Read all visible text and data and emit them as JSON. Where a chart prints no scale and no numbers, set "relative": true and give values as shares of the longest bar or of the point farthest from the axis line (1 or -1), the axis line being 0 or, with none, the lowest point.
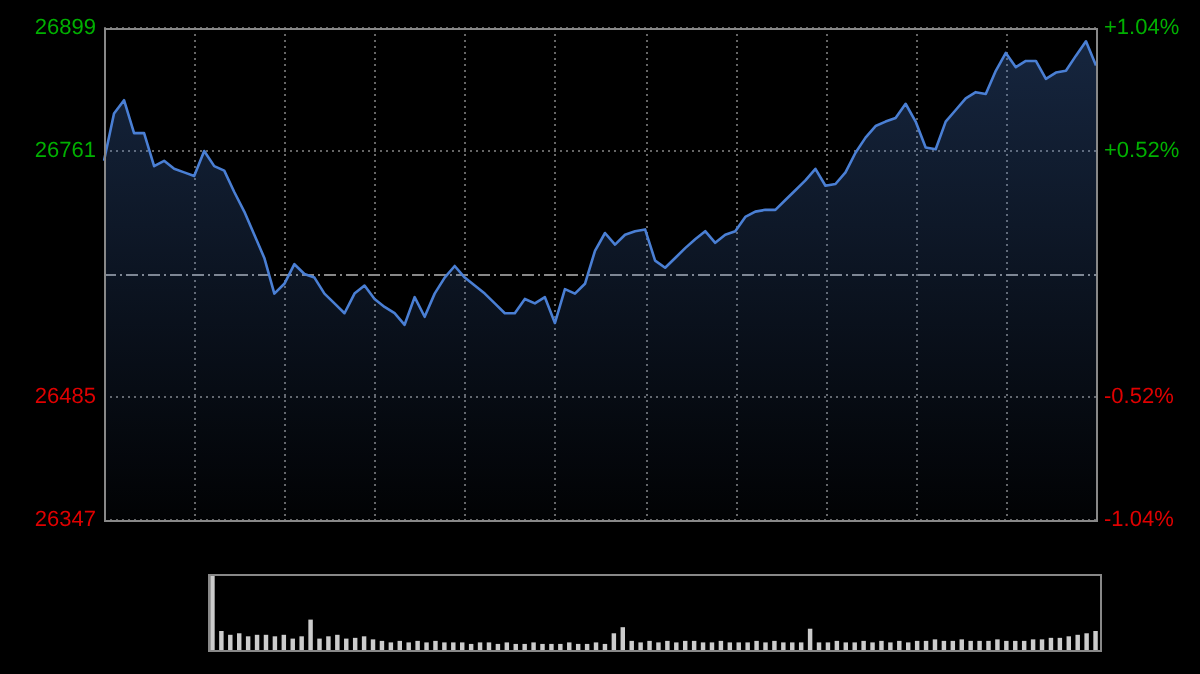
{
  "chart_data": [
    {
      "type": "area",
      "categories": [
        null,
        null,
        null,
        null,
        null,
        null,
        null,
        null,
        null,
        null,
        null,
        null,
        null,
        null,
        null,
        null,
        null,
        null,
        null,
        null,
        null,
        null,
        null,
        null,
        null,
        null,
        null,
        null,
        null,
        null,
        null,
        null,
        null,
        null,
        null,
        null,
        null,
        null,
        null,
        null,
        null,
        null,
        null,
        null,
        null,
        null,
        null,
        null,
        null,
        null,
        null,
        null,
        null,
        null,
        null,
        null,
        null,
        null,
        null,
        null,
        null,
        null,
        null,
        null,
        null,
        null,
        null,
        null,
        null,
        null,
        null,
        null,
        null,
        null,
        null,
        null,
        null,
        null,
        null,
        null,
        null,
        null,
        null,
        null,
        null,
        null,
        null,
        null,
        null,
        null,
        null,
        null,
        null,
        null,
        null,
        null,
        null,
        null,
        null,
        null
      ],
      "values": [
        26750,
        26803,
        26818,
        26781,
        26781,
        26744,
        26750,
        26741,
        26737,
        26733,
        26761,
        26744,
        26739,
        26715,
        26693,
        26667,
        26641,
        26601,
        26612,
        26634,
        26623,
        26619,
        26601,
        26590,
        26579,
        26601,
        26610,
        26595,
        26586,
        26579,
        26566,
        26597,
        26575,
        26601,
        26619,
        26632,
        26619,
        26610,
        26601,
        26590,
        26579,
        26579,
        26595,
        26590,
        26597,
        26568,
        26606,
        26601,
        26612,
        26649,
        26669,
        26656,
        26667,
        26671,
        26673,
        26638,
        26630,
        26641,
        26652,
        26662,
        26671,
        26658,
        26667,
        26671,
        26687,
        26693,
        26695,
        26695,
        26706,
        26717,
        26728,
        26741,
        26722,
        26724,
        26737,
        26759,
        26776,
        26789,
        26794,
        26798,
        26814,
        26794,
        26765,
        26763,
        26794,
        26807,
        26820,
        26827,
        26825,
        26851,
        26871,
        26855,
        26862,
        26862,
        26842,
        26849,
        26851,
        26868,
        26884,
        26857
      ],
      "color": "#4a7fd4",
      "ylim": [
        26347,
        26899
      ],
      "yticks": [
        26347,
        26485,
        26761,
        26899
      ],
      "y2lim": [
        -1.04,
        1.04
      ],
      "y2ticks": [
        {
          "value": -1.04,
          "label": "-1.04%"
        },
        {
          "value": -0.52,
          "label": "-0.52%"
        },
        {
          "value": 0.52,
          "label": "+0.52%"
        },
        {
          "value": 1.04,
          "label": "+1.04%"
        }
      ],
      "ref_lines": [
        {
          "axis": "y",
          "value": 26623,
          "color": "#888888",
          "line_style": "dashdot"
        }
      ],
      "grid": true,
      "tick_labels": "y"
    },
    {
      "type": "bar",
      "relative": true,
      "categories": [
        null,
        null,
        null,
        null,
        null,
        null,
        null,
        null,
        null,
        null,
        null,
        null,
        null,
        null,
        null,
        null,
        null,
        null,
        null,
        null,
        null,
        null,
        null,
        null,
        null,
        null,
        null,
        null,
        null,
        null,
        null,
        null,
        null,
        null,
        null,
        null,
        null,
        null,
        null,
        null,
        null,
        null,
        null,
        null,
        null,
        null,
        null,
        null,
        null,
        null,
        null,
        null,
        null,
        null,
        null,
        null,
        null,
        null,
        null,
        null,
        null,
        null,
        null,
        null,
        null,
        null,
        null,
        null,
        null,
        null,
        null,
        null,
        null,
        null,
        null,
        null,
        null,
        null,
        null,
        null,
        null,
        null,
        null,
        null,
        null,
        null,
        null,
        null,
        null,
        null,
        null,
        null,
        null,
        null,
        null,
        null,
        null,
        null,
        null,
        null
      ],
      "values": [
        1,
        0.25,
        0.2,
        0.22,
        0.18,
        0.2,
        0.2,
        0.18,
        0.2,
        0.15,
        0.18,
        0.4,
        0.15,
        0.18,
        0.2,
        0.15,
        0.16,
        0.18,
        0.14,
        0.12,
        0.1,
        0.12,
        0.1,
        0.12,
        0.1,
        0.12,
        0.1,
        0.1,
        0.1,
        0.08,
        0.1,
        0.1,
        0.08,
        0.1,
        0.08,
        0.08,
        0.1,
        0.08,
        0.08,
        0.08,
        0.1,
        0.08,
        0.08,
        0.1,
        0.08,
        0.22,
        0.3,
        0.12,
        0.1,
        0.12,
        0.1,
        0.12,
        0.1,
        0.12,
        0.12,
        0.1,
        0.1,
        0.12,
        0.1,
        0.1,
        0.1,
        0.12,
        0.1,
        0.12,
        0.1,
        0.1,
        0.1,
        0.28,
        0.1,
        0.1,
        0.12,
        0.1,
        0.1,
        0.12,
        0.1,
        0.12,
        0.1,
        0.12,
        0.1,
        0.12,
        0.12,
        0.14,
        0.12,
        0.12,
        0.14,
        0.12,
        0.12,
        0.12,
        0.14,
        0.12,
        0.12,
        0.12,
        0.14,
        0.14,
        0.16,
        0.16,
        0.18,
        0.2,
        0.22,
        0.25
      ],
      "color": "#cccccc",
      "tick_labels": false
    }
  ]
}
